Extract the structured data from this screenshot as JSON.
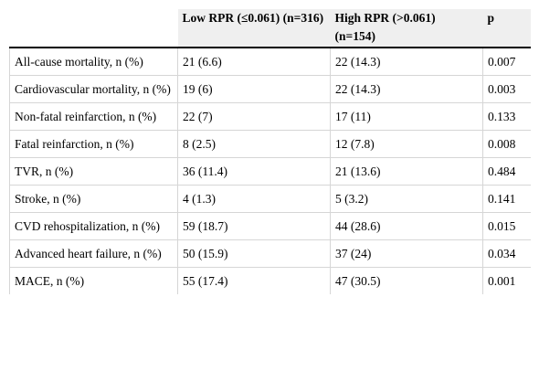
{
  "table": {
    "headers": [
      "",
      "Low RPR (≤0.061) (n=316)",
      "High RPR (>0.061) (n=154)",
      "p"
    ],
    "rows": [
      {
        "label": "All-cause mortality, n (%)",
        "low": "21 (6.6)",
        "high": "22 (14.3)",
        "p": "0.007"
      },
      {
        "label": "Cardiovascular mortality, n (%)",
        "low": "19 (6)",
        "high": "22 (14.3)",
        "p": "0.003"
      },
      {
        "label": "Non-fatal reinfarction, n (%)",
        "low": "22 (7)",
        "high": "17 (11)",
        "p": "0.133"
      },
      {
        "label": "Fatal reinfarction, n (%)",
        "low": "8 (2.5)",
        "high": "12 (7.8)",
        "p": "0.008"
      },
      {
        "label": "TVR, n (%)",
        "low": "36 (11.4)",
        "high": "21 (13.6)",
        "p": "0.484"
      },
      {
        "label": "Stroke, n (%)",
        "low": "4 (1.3)",
        "high": "5 (3.2)",
        "p": "0.141"
      },
      {
        "label": "CVD rehospitalization, n (%)",
        "low": "59 (18.7)",
        "high": "44 (28.6)",
        "p": "0.015"
      },
      {
        "label": "Advanced heart failure, n (%)",
        "low": "50 (15.9)",
        "high": "37 (24)",
        "p": "0.034"
      },
      {
        "label": "MACE, n (%)",
        "low": "55 (17.4)",
        "high": "47 (30.5)",
        "p": "0.001"
      }
    ]
  }
}
